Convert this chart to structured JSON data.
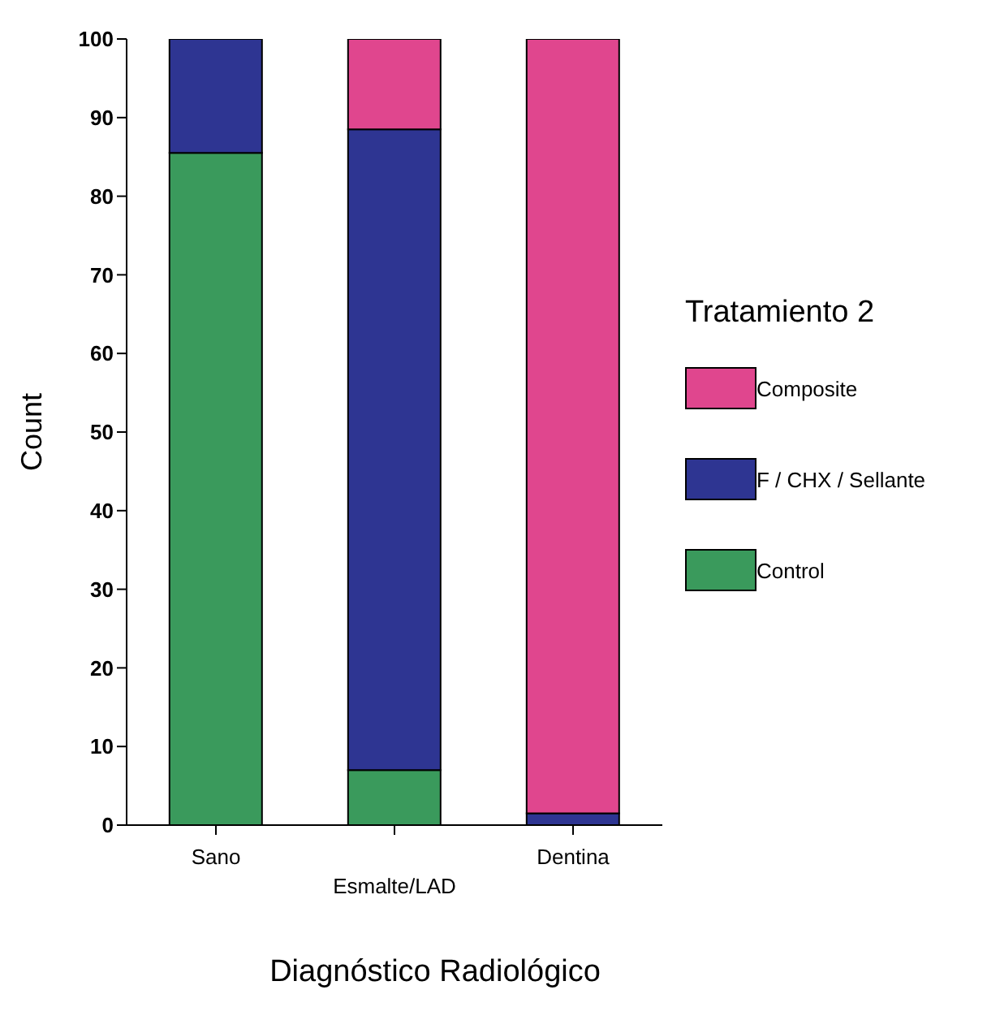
{
  "chart_data": {
    "type": "bar",
    "stacked": true,
    "xlabel": "Diagnóstico Radiológico",
    "ylabel": "Count",
    "legend_title": "Tratamiento 2",
    "legend": "right",
    "categories": [
      "Sano",
      "Esmalte/LAD",
      "Dentina"
    ],
    "series": [
      {
        "name": "Control",
        "color": "#3a9a5c",
        "values": [
          85.5,
          7,
          0
        ]
      },
      {
        "name": "F / CHX / Sellante",
        "color": "#2e3592",
        "values": [
          14.5,
          81.5,
          1.5
        ]
      },
      {
        "name": "Composite",
        "color": "#e0468e",
        "values": [
          0,
          11.5,
          98.5
        ]
      }
    ],
    "ylim": [
      0,
      100
    ],
    "yticks": [
      0,
      10,
      20,
      30,
      40,
      50,
      60,
      70,
      80,
      90,
      100
    ],
    "grid": false
  }
}
